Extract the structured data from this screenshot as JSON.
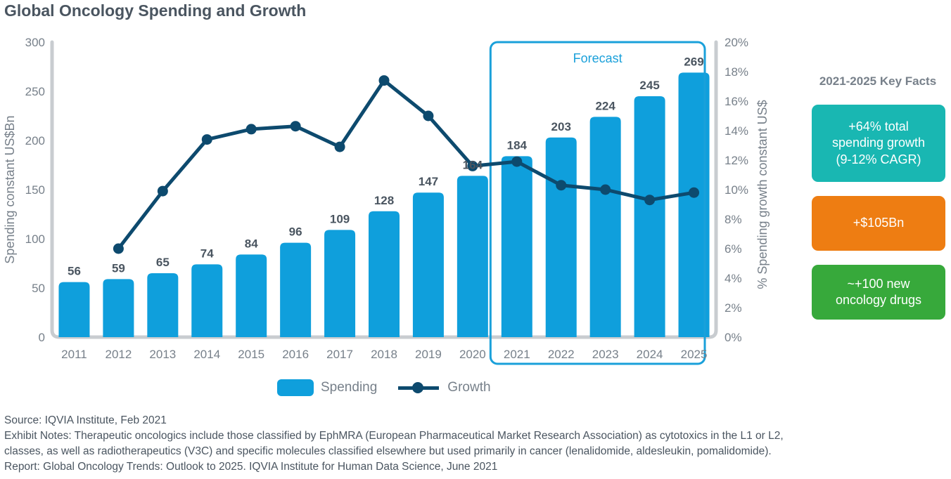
{
  "title": "Global Oncology Spending and Growth",
  "chart_data": {
    "type": "bar",
    "categories": [
      "2011",
      "2012",
      "2013",
      "2014",
      "2015",
      "2016",
      "2017",
      "2018",
      "2019",
      "2020",
      "2021",
      "2022",
      "2023",
      "2024",
      "2025"
    ],
    "series": [
      {
        "name": "Spending",
        "type": "bar",
        "axis": "left",
        "values": [
          56,
          59,
          65,
          74,
          84,
          96,
          109,
          128,
          147,
          164,
          184,
          203,
          224,
          245,
          269
        ]
      },
      {
        "name": "Growth",
        "type": "line",
        "axis": "right",
        "values": [
          null,
          6.0,
          9.9,
          13.4,
          14.1,
          14.3,
          12.9,
          17.4,
          15.0,
          11.6,
          11.9,
          10.3,
          10.0,
          9.3,
          9.8
        ]
      }
    ],
    "ylabel": "Spending constant US$Bn",
    "y2label": "% Spending growth constant US$",
    "ylim": [
      0,
      300
    ],
    "y2lim": [
      0,
      20
    ],
    "yticks": [
      "0",
      "50",
      "100",
      "150",
      "200",
      "250",
      "300"
    ],
    "y2ticks": [
      "0%",
      "2%",
      "4%",
      "6%",
      "8%",
      "10%",
      "12%",
      "14%",
      "16%",
      "18%",
      "20%"
    ],
    "forecast_label": "Forecast",
    "forecast_start": "2021",
    "legend": "bottom-center",
    "colors": {
      "bar": "#0f9fdc",
      "line": "#0d4a6e",
      "forecast_box": "#1aa0da",
      "axis": "#c8ccd0"
    }
  },
  "legend": {
    "spending": "Spending",
    "growth": "Growth"
  },
  "key_facts": {
    "title": "2021-2025 Key Facts",
    "items": [
      {
        "text_lines": [
          "+64% total",
          "spending growth",
          "(9-12% CAGR)"
        ],
        "color": "#19b7b2"
      },
      {
        "text_lines": [
          "+$105Bn"
        ],
        "color": "#ee7d12"
      },
      {
        "text_lines": [
          "~+100 new",
          "oncology drugs"
        ],
        "color": "#37a93b"
      }
    ]
  },
  "notes": {
    "source": "Source: IQVIA Institute, Feb 2021",
    "exhibit_line1": "Exhibit Notes: Therapeutic oncologics include those classified by EphMRA (European Pharmaceutical Market Research Association) as cytotoxics in the L1 or L2,",
    "exhibit_line2": "classes, as well as radiotherapeutics (V3C) and specific molecules classified elsewhere but used primarily in cancer (lenalidomide, aldesleukin, pomalidomide).",
    "report": "Report: Global Oncology Trends: Outlook to 2025. IQVIA Institute for Human Data Science, June 2021"
  }
}
